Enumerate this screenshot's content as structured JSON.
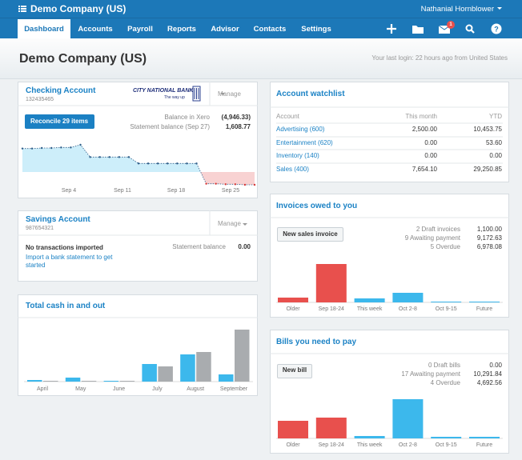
{
  "header": {
    "company": "Demo Company (US)",
    "user": "Nathanial Hornblower",
    "notifications": "1",
    "nav": [
      "Dashboard",
      "Accounts",
      "Payroll",
      "Reports",
      "Advisor",
      "Contacts",
      "Settings"
    ]
  },
  "title_bar": {
    "title": "Demo Company (US)",
    "last_login": "Your last login: 22 hours ago from United States"
  },
  "checking": {
    "title": "Checking Account",
    "number": "132435465",
    "bank": "CITY NATIONAL BANK",
    "bank_tagline": "The way up",
    "manage": "Manage",
    "button": "Reconcile 29 items",
    "balance_label": "Balance in Xero",
    "balance": "(4,946.33)",
    "statement_label": "Statement balance (Sep 27)",
    "statement": "1,608.77",
    "chart": {
      "type": "area",
      "x_labels": [
        "Sep 4",
        "Sep 11",
        "Sep 18",
        "Sep 25"
      ],
      "values": [
        2200,
        2200,
        2250,
        2250,
        2300,
        2300,
        2550,
        1400,
        1400,
        1400,
        1400,
        1400,
        800,
        800,
        800,
        800,
        800,
        800,
        800,
        -1100,
        -1100,
        -1150,
        -1150,
        -1200,
        -1200
      ],
      "ylim": [
        -1500,
        3000
      ],
      "line_color": "#2f5f8a",
      "negative_color": "#d83a3a",
      "fill_color": "#cdeefa",
      "negative_fill_color": "#f8d2d2"
    }
  },
  "savings": {
    "title": "Savings Account",
    "number": "987654321",
    "manage": "Manage",
    "status": "No transactions imported",
    "link": "Import a bank statement to get started",
    "statement_label": "Statement balance",
    "statement": "0.00"
  },
  "cash": {
    "title": "Total cash in and out",
    "chart": {
      "type": "bar",
      "categories": [
        "April",
        "May",
        "June",
        "July",
        "August",
        "September"
      ],
      "series": [
        {
          "color": "#3cb8ec",
          "values": [
            2,
            5,
            1,
            22,
            34,
            9
          ]
        },
        {
          "color": "#a9acaf",
          "values": [
            1,
            1,
            1,
            19,
            37,
            65
          ]
        }
      ],
      "ylim": [
        0,
        70
      ]
    }
  },
  "watchlist": {
    "title": "Account watchlist",
    "columns": [
      "Account",
      "This month",
      "YTD"
    ],
    "rows": [
      [
        "Advertising (600)",
        "2,500.00",
        "10,453.75"
      ],
      [
        "Entertainment (620)",
        "0.00",
        "53.60"
      ],
      [
        "Inventory (140)",
        "0.00",
        "0.00"
      ],
      [
        "Sales (400)",
        "7,654.10",
        "29,250.85"
      ]
    ]
  },
  "invoices": {
    "title": "Invoices owed to you",
    "button": "New sales invoice",
    "summary": [
      [
        "2 Draft invoices",
        "1,100.00"
      ],
      [
        "9 Awaiting payment",
        "9,172.63"
      ],
      [
        "5 Overdue",
        "6,978.08"
      ]
    ],
    "chart": {
      "type": "bar",
      "categories": [
        "Older",
        "Sep 18-24",
        "This week",
        "Oct 2-8",
        "Oct 9-15",
        "Future"
      ],
      "values": [
        6,
        48,
        5,
        12,
        1,
        1
      ],
      "colors": [
        "#e8504d",
        "#e8504d",
        "#3cb8ec",
        "#3cb8ec",
        "#3cb8ec",
        "#3cb8ec"
      ],
      "ylim": [
        0,
        55
      ]
    }
  },
  "bills": {
    "title": "Bills you need to pay",
    "button": "New bill",
    "summary": [
      [
        "0 Draft bills",
        "0.00"
      ],
      [
        "17 Awaiting payment",
        "10,291.84"
      ],
      [
        "4 Overdue",
        "4,692.56"
      ]
    ],
    "chart": {
      "type": "bar",
      "categories": [
        "Older",
        "Sep 18-24",
        "This week",
        "Oct 2-8",
        "Oct 9-15",
        "Future"
      ],
      "values": [
        22,
        26,
        3,
        49,
        2,
        2
      ],
      "colors": [
        "#e8504d",
        "#e8504d",
        "#3cb8ec",
        "#3cb8ec",
        "#3cb8ec",
        "#3cb8ec"
      ],
      "ylim": [
        0,
        55
      ]
    }
  }
}
